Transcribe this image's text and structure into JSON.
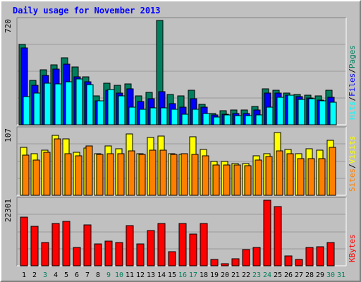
{
  "title": "Daily usage for November 2013",
  "colors": {
    "pages": "#007f5f",
    "files": "#0000ff",
    "hits": "#00ffff",
    "visits": "#ffff00",
    "sites": "#ff8000",
    "kbytes": "#ff0000",
    "weekend_day": "#00805c",
    "weekday": "#000000"
  },
  "chart_data": [
    {
      "type": "bar",
      "panel": "pages-files-hits",
      "ymax_label": "720",
      "ylim": [
        0,
        720
      ],
      "x": [
        "1",
        "2",
        "3",
        "4",
        "5",
        "6",
        "7",
        "8",
        "9",
        "10",
        "11",
        "12",
        "13",
        "14",
        "15",
        "16",
        "17",
        "18",
        "19",
        "20",
        "21",
        "22",
        "23",
        "24",
        "25",
        "26",
        "27",
        "28",
        "29",
        "30",
        "31"
      ],
      "series": [
        {
          "name": "Pages",
          "values": [
            555,
            305,
            380,
            415,
            460,
            400,
            330,
            200,
            285,
            270,
            280,
            200,
            225,
            720,
            210,
            200,
            240,
            140,
            80,
            95,
            100,
            100,
            125,
            250,
            240,
            220,
            210,
            205,
            200,
            240,
            0
          ]
        },
        {
          "name": "Files",
          "values": [
            530,
            270,
            340,
            385,
            420,
            330,
            295,
            165,
            240,
            220,
            250,
            160,
            180,
            230,
            145,
            120,
            180,
            120,
            70,
            75,
            80,
            80,
            100,
            220,
            220,
            205,
            195,
            185,
            170,
            190,
            0
          ]
        },
        {
          "name": "Hits",
          "values": [
            195,
            220,
            285,
            280,
            295,
            315,
            275,
            165,
            245,
            200,
            120,
            105,
            115,
            115,
            105,
            75,
            105,
            80,
            55,
            70,
            65,
            65,
            70,
            120,
            190,
            205,
            175,
            180,
            165,
            155,
            0
          ]
        }
      ]
    },
    {
      "type": "bar",
      "panel": "visits-sites",
      "ymax_label": "107",
      "ylim": [
        0,
        107
      ],
      "x": [
        "1",
        "2",
        "3",
        "4",
        "5",
        "6",
        "7",
        "8",
        "9",
        "10",
        "11",
        "12",
        "13",
        "14",
        "15",
        "16",
        "17",
        "18",
        "19",
        "20",
        "21",
        "22",
        "23",
        "24",
        "25",
        "26",
        "27",
        "28",
        "29",
        "30",
        "31"
      ],
      "series": [
        {
          "name": "Visits",
          "values": [
            78,
            68,
            74,
            98,
            92,
            70,
            77,
            68,
            80,
            76,
            100,
            68,
            94,
            97,
            68,
            67,
            95,
            75,
            55,
            55,
            52,
            52,
            65,
            68,
            102,
            75,
            68,
            76,
            74,
            90,
            0
          ]
        },
        {
          "name": "Sites",
          "values": [
            66,
            58,
            70,
            92,
            68,
            64,
            80,
            67,
            68,
            68,
            72,
            67,
            74,
            74,
            67,
            68,
            67,
            64,
            50,
            50,
            50,
            48,
            58,
            63,
            72,
            68,
            60,
            60,
            60,
            78,
            0
          ]
        }
      ]
    },
    {
      "type": "bar",
      "panel": "kbytes",
      "ymax_label": "22301",
      "ylim": [
        0,
        22301
      ],
      "x": [
        "1",
        "2",
        "3",
        "4",
        "5",
        "6",
        "7",
        "8",
        "9",
        "10",
        "11",
        "12",
        "13",
        "14",
        "15",
        "16",
        "17",
        "18",
        "19",
        "20",
        "21",
        "22",
        "23",
        "24",
        "25",
        "26",
        "27",
        "28",
        "29",
        "30",
        "31"
      ],
      "series": [
        {
          "name": "KBytes",
          "values": [
            16500,
            13500,
            7800,
            14500,
            15000,
            6200,
            13800,
            7400,
            8300,
            7800,
            13700,
            7500,
            12100,
            14300,
            4800,
            14500,
            10800,
            14300,
            2100,
            800,
            2300,
            5400,
            6200,
            22301,
            20100,
            3300,
            2200,
            6200,
            6500,
            7800,
            0
          ]
        }
      ]
    }
  ],
  "legend": {
    "top": [
      "Hits",
      "/",
      "Files",
      "/",
      "Pages"
    ],
    "middle": [
      "Sites",
      "/",
      "Visits"
    ],
    "bottom": [
      "KBytes"
    ]
  },
  "weekend_days": [
    "3",
    "9",
    "10",
    "16",
    "17",
    "23",
    "24",
    "30",
    "31"
  ]
}
